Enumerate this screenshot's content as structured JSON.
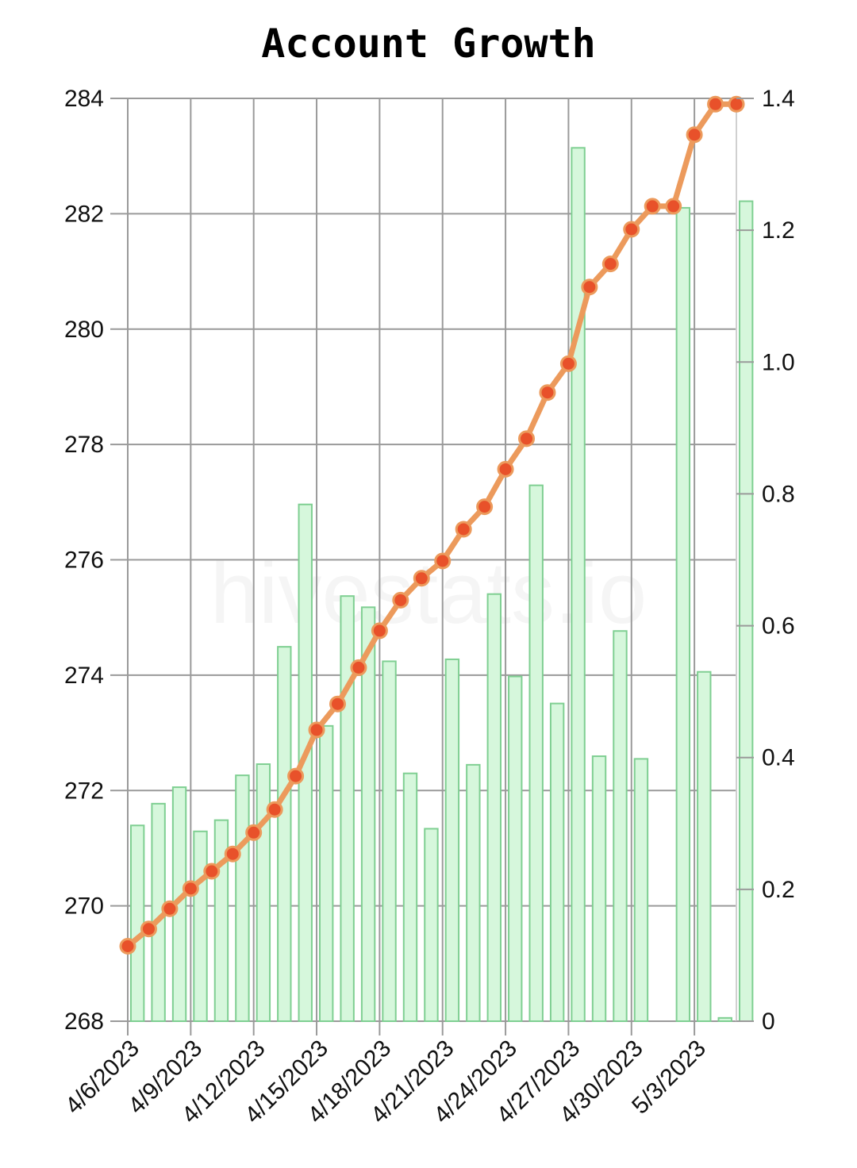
{
  "chart_data": {
    "type": "bar",
    "title": "Account Growth",
    "watermark": "hivestats.io",
    "x": [
      "4/6/2023",
      "4/7/2023",
      "4/8/2023",
      "4/9/2023",
      "4/10/2023",
      "4/11/2023",
      "4/12/2023",
      "4/13/2023",
      "4/14/2023",
      "4/15/2023",
      "4/16/2023",
      "4/17/2023",
      "4/18/2023",
      "4/19/2023",
      "4/20/2023",
      "4/21/2023",
      "4/22/2023",
      "4/23/2023",
      "4/24/2023",
      "4/25/2023",
      "4/26/2023",
      "4/27/2023",
      "4/28/2023",
      "4/29/2023",
      "4/30/2023",
      "5/1/2023",
      "5/2/2023",
      "5/3/2023",
      "5/4/2023",
      "5/5/2023"
    ],
    "x_tick_labels": [
      "4/6/2023",
      "4/9/2023",
      "4/12/2023",
      "4/15/2023",
      "4/18/2023",
      "4/21/2023",
      "4/24/2023",
      "4/27/2023",
      "4/30/2023",
      "5/3/2023"
    ],
    "series": [
      {
        "type": "line",
        "axis": "left",
        "color": "#ec9a5c",
        "marker_color": "#e8512a",
        "values": [
          269.3,
          269.6,
          269.95,
          270.3,
          270.6,
          270.9,
          271.27,
          271.67,
          272.25,
          273.05,
          273.5,
          274.13,
          274.77,
          275.3,
          275.68,
          275.98,
          276.53,
          276.92,
          277.57,
          278.1,
          278.9,
          279.4,
          280.73,
          281.13,
          281.73,
          282.13,
          282.13,
          283.37,
          283.9,
          283.9
        ]
      },
      {
        "type": "bar",
        "axis": "right",
        "color": "#d6f7dc",
        "stroke": "#7fcf92",
        "values": [
          0.297,
          0.33,
          0.355,
          0.288,
          0.305,
          0.373,
          0.39,
          0.568,
          0.784,
          0.448,
          0.645,
          0.628,
          0.546,
          0.376,
          0.292,
          0.549,
          0.389,
          0.648,
          0.523,
          0.813,
          0.482,
          1.325,
          0.402,
          0.592,
          0.398,
          0.0,
          1.234,
          0.53,
          0.005,
          1.244
        ]
      }
    ],
    "y_left": {
      "ylim": [
        268,
        284
      ],
      "ticks": [
        "268",
        "270",
        "272",
        "274",
        "276",
        "278",
        "280",
        "282",
        "284"
      ]
    },
    "y_right": {
      "ylim": [
        0,
        1.4
      ],
      "ticks": [
        "0",
        "0.2",
        "0.4",
        "0.6",
        "0.8",
        "1.0",
        "1.2",
        "1.4"
      ]
    },
    "grid": true,
    "grid_color": "#9a9a9a"
  }
}
